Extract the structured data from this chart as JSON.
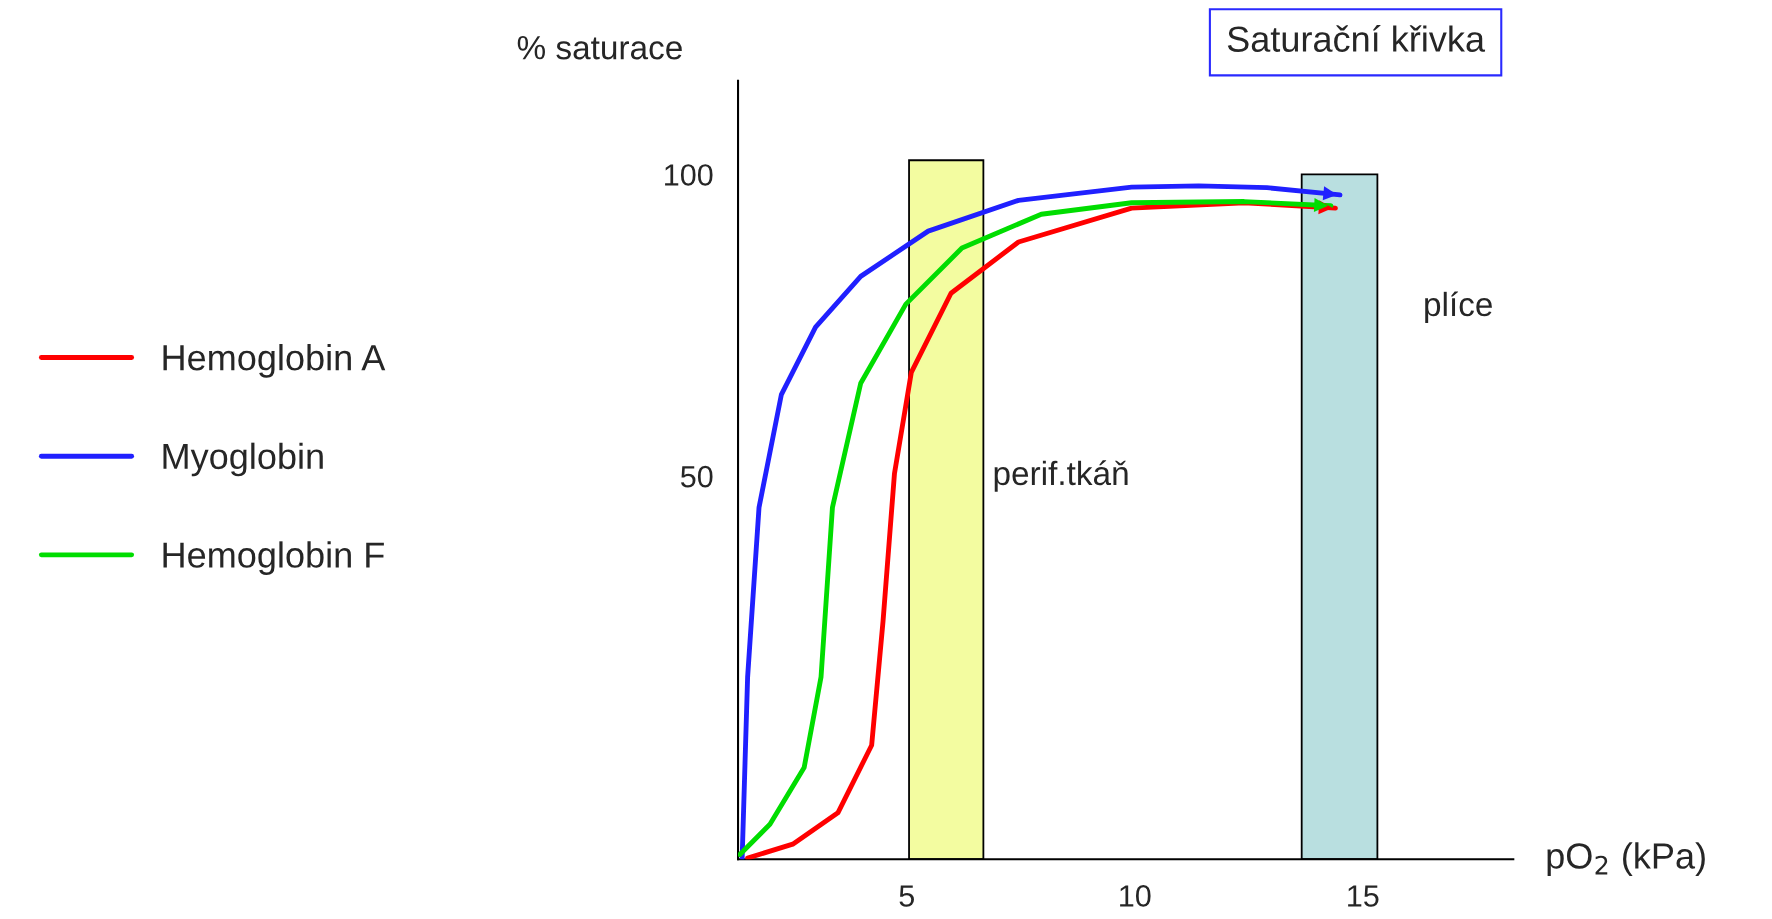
{
  "chart_data": {
    "type": "line",
    "title": "Saturační křivka",
    "xlabel": "pO$_{2}$ (kPa)",
    "ylabel": "% saturace",
    "xlim": [
      1.3,
      18.3
    ],
    "ylim": [
      -13.5,
      115.5
    ],
    "xticks": [
      5,
      10,
      15
    ],
    "yticks": [
      50,
      100
    ],
    "grid": false,
    "legend": "left",
    "marker": "none",
    "line_style": "solid",
    "series": [
      {
        "name": "Hemoglobin A",
        "color": "#ff0000",
        "x": [
          1.51,
          2.5,
          3.49,
          4.23,
          4.48,
          4.73,
          5.1,
          5.97,
          7.45,
          9.93,
          12.4,
          14.4
        ],
        "values": [
          -13.3,
          -11,
          -5.8,
          5.4,
          26,
          50.4,
          67.2,
          80.3,
          88.8,
          94.4,
          95.3,
          94.4
        ]
      },
      {
        "name": "Myoglobin",
        "color": "#2020ff",
        "x": [
          1.39,
          1.51,
          1.76,
          2.25,
          3.0,
          3.99,
          5.47,
          7.45,
          9.93,
          11.4,
          12.9,
          14.5
        ],
        "values": [
          -13.3,
          16.7,
          44.8,
          63.5,
          74.7,
          83.1,
          90.6,
          95.7,
          97.9,
          98.1,
          97.8,
          96.6
        ]
      },
      {
        "name": "Hemoglobin F",
        "color": "#00dd00",
        "x": [
          1.34,
          2.0,
          2.75,
          3.12,
          3.37,
          3.99,
          4.98,
          6.21,
          7.95,
          9.93,
          12.4,
          14.3
        ],
        "values": [
          -12.7,
          -7.7,
          1.7,
          16.7,
          44.8,
          65.4,
          78.5,
          87.8,
          93.4,
          95.3,
          95.5,
          94.8
        ]
      }
    ],
    "bands": [
      {
        "axis": "x",
        "from": 5.05,
        "to": 6.68,
        "label": "perif.tkáň",
        "color": "#f3fca0"
      },
      {
        "axis": "x",
        "from": 13.66,
        "to": 15.32,
        "label": "plíce",
        "color": "#b9dfe0"
      }
    ]
  }
}
